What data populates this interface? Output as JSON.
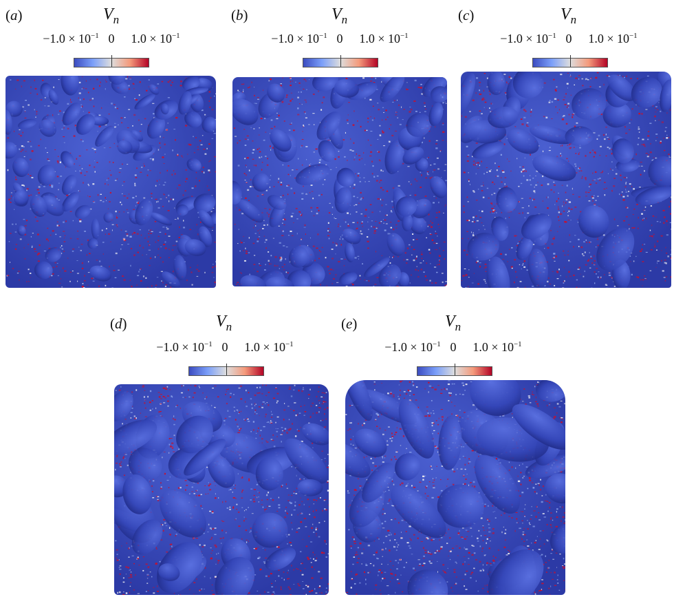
{
  "panels": [
    {
      "label": "a",
      "symbol": "V",
      "subscript": "n",
      "ticks": {
        "min": "−1.0 × 10",
        "min_exp": "−1",
        "mid": "0",
        "max": "1.0 × 10",
        "max_exp": "−1"
      }
    },
    {
      "label": "b",
      "symbol": "V",
      "subscript": "n",
      "ticks": {
        "min": "−1.0 × 10",
        "min_exp": "−1",
        "mid": "0",
        "max": "1.0 × 10",
        "max_exp": "−1"
      }
    },
    {
      "label": "c",
      "symbol": "V",
      "subscript": "n",
      "ticks": {
        "min": "−1.0 × 10",
        "min_exp": "−1",
        "mid": "0",
        "max": "1.0 × 10",
        "max_exp": "−1"
      }
    },
    {
      "label": "d",
      "symbol": "V",
      "subscript": "n",
      "ticks": {
        "min": "−1.0 × 10",
        "min_exp": "−1",
        "mid": "0",
        "max": "1.0 × 10",
        "max_exp": "−1"
      }
    },
    {
      "label": "e",
      "symbol": "V",
      "subscript": "n",
      "ticks": {
        "min": "−1.0 × 10",
        "min_exp": "−1",
        "mid": "0",
        "max": "1.0 × 10",
        "max_exp": "−1"
      }
    }
  ],
  "colormap": {
    "low": "#3b4cc0",
    "mid": "#dddddd",
    "high": "#b40426"
  }
}
